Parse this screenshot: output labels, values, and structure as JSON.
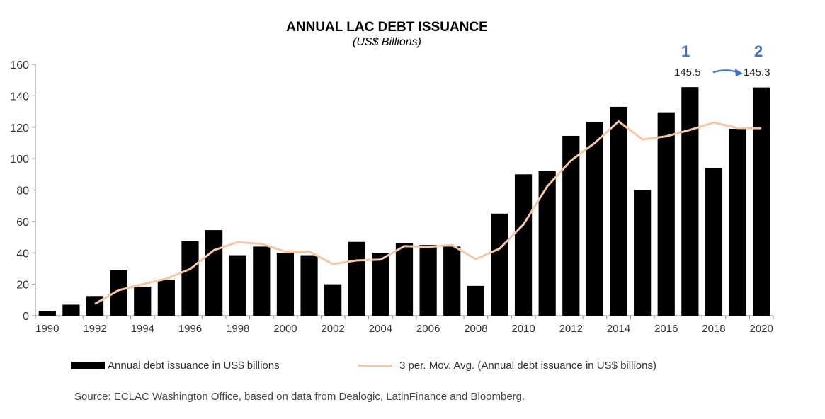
{
  "chart_data": {
    "type": "bar",
    "title": "ANNUAL LAC DEBT ISSUANCE",
    "subtitle": "(US$ Billions)",
    "xlabel": "",
    "ylabel": "",
    "ylim": [
      0,
      160
    ],
    "yticks": [
      0,
      20,
      40,
      60,
      80,
      100,
      120,
      140,
      160
    ],
    "xtick_labels": [
      "1990",
      "1992",
      "1994",
      "1996",
      "1998",
      "2000",
      "2002",
      "2004",
      "2006",
      "2008",
      "2010",
      "2012",
      "2014",
      "2016",
      "2018",
      "2020"
    ],
    "categories": [
      1990,
      1991,
      1992,
      1993,
      1994,
      1995,
      1996,
      1997,
      1998,
      1999,
      2000,
      2001,
      2002,
      2003,
      2004,
      2005,
      2006,
      2007,
      2008,
      2009,
      2010,
      2011,
      2012,
      2013,
      2014,
      2015,
      2016,
      2017,
      2018,
      2019,
      2020
    ],
    "grid": false,
    "legend_placement": "bottom",
    "series": [
      {
        "name": "Annual  debt issuance in US$ billions",
        "type": "bar",
        "color": "#000000",
        "values": [
          3,
          7,
          12.5,
          29,
          18.5,
          23,
          47.5,
          54.5,
          38.5,
          44,
          40,
          38.5,
          20,
          47,
          40,
          46,
          45,
          44,
          19,
          65,
          90,
          92,
          114.5,
          123.5,
          133,
          80,
          129.5,
          145.5,
          94,
          119,
          145.3
        ]
      },
      {
        "name": "3 per. Mov. Avg. (Annual  debt issuance in US$ billions)",
        "type": "line",
        "color": "#f4c7a6",
        "values": [
          null,
          null,
          7.5,
          16.2,
          20,
          23.5,
          29.7,
          41.7,
          46.8,
          45.7,
          40.8,
          40.8,
          32.8,
          35.2,
          35.7,
          44.3,
          43.7,
          45,
          36,
          42.7,
          58,
          82.3,
          98.8,
          110,
          123.7,
          112.2,
          114.2,
          118.3,
          123,
          119.5,
          119.4
        ]
      }
    ],
    "annotations": {
      "marker_1": "1",
      "marker_2": "2",
      "value_1": "145.5",
      "value_2": "145.3",
      "arrow_color": "#4472c4"
    },
    "source": "Source: ECLAC Washington Office, based on data from Dealogic, LatinFinance and Bloomberg."
  }
}
